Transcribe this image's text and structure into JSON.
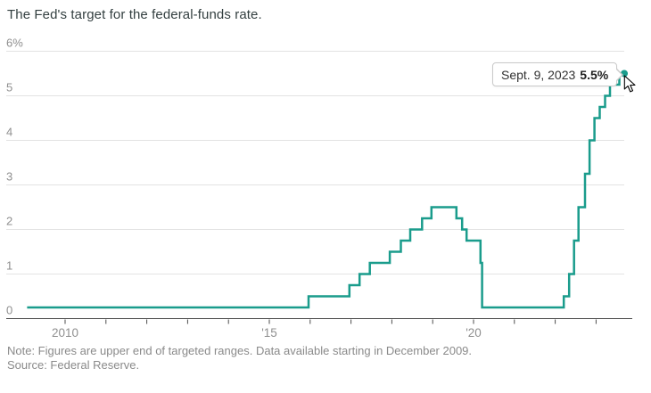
{
  "title": "The Fed's target for the federal-funds rate.",
  "tooltip": {
    "date": "Sept. 9, 2023",
    "value": "5.5%"
  },
  "footnotes": {
    "note": "Note: Figures are upper end of targeted ranges. Data available starting in December 2009.",
    "source": "Source: Federal Reserve."
  },
  "colors": {
    "line": "#1a9c8c",
    "grid": "#e3e3e3",
    "axis": "#4d4d4d",
    "axis_label": "#8f8f8f",
    "title": "#333f40",
    "note": "#8a8a8a",
    "tooltip_border": "#c9c9c9"
  },
  "chart_data": {
    "type": "line",
    "step": true,
    "title": "The Fed's target for the federal-funds rate.",
    "xlabel": "",
    "ylabel": "percent",
    "ylim": [
      0,
      6
    ],
    "xlim_decimal_years": [
      2009.05,
      2023.8
    ],
    "grid": "horizontal-only",
    "legend_position": "none",
    "yticks": [
      {
        "v": 6,
        "label": "6%"
      },
      {
        "v": 5,
        "label": "5"
      },
      {
        "v": 4,
        "label": "4"
      },
      {
        "v": 3,
        "label": "3"
      },
      {
        "v": 2,
        "label": "2"
      },
      {
        "v": 1,
        "label": "1"
      },
      {
        "v": 0,
        "label": "0"
      }
    ],
    "xticks": [
      2010,
      2011,
      2012,
      2013,
      2014,
      2015,
      2016,
      2017,
      2018,
      2019,
      2020,
      2021,
      2022,
      2023
    ],
    "xtick_labels": {
      "2010": "2010",
      "2015": "'15",
      "2020": "'20"
    },
    "series": [
      {
        "name": "Federal-funds rate target, upper end (%)",
        "points": [
          [
            2009.07,
            0.25
          ],
          [
            2015.96,
            0.5
          ],
          [
            2016.96,
            0.75
          ],
          [
            2017.21,
            1.0
          ],
          [
            2017.46,
            1.25
          ],
          [
            2017.95,
            1.5
          ],
          [
            2018.22,
            1.75
          ],
          [
            2018.45,
            2.0
          ],
          [
            2018.74,
            2.25
          ],
          [
            2018.97,
            2.5
          ],
          [
            2019.58,
            2.25
          ],
          [
            2019.72,
            2.0
          ],
          [
            2019.83,
            1.75
          ],
          [
            2020.17,
            1.25
          ],
          [
            2020.21,
            0.25
          ],
          [
            2022.21,
            0.5
          ],
          [
            2022.34,
            1.0
          ],
          [
            2022.46,
            1.75
          ],
          [
            2022.57,
            2.5
          ],
          [
            2022.73,
            3.25
          ],
          [
            2022.84,
            4.0
          ],
          [
            2022.96,
            4.5
          ],
          [
            2023.09,
            4.75
          ],
          [
            2023.22,
            5.0
          ],
          [
            2023.34,
            5.25
          ],
          [
            2023.57,
            5.5
          ],
          [
            2023.69,
            5.5
          ]
        ]
      }
    ],
    "end_point": {
      "x": 2023.69,
      "y": 5.5,
      "date_label": "Sept. 9, 2023",
      "value_label": "5.5%"
    }
  }
}
